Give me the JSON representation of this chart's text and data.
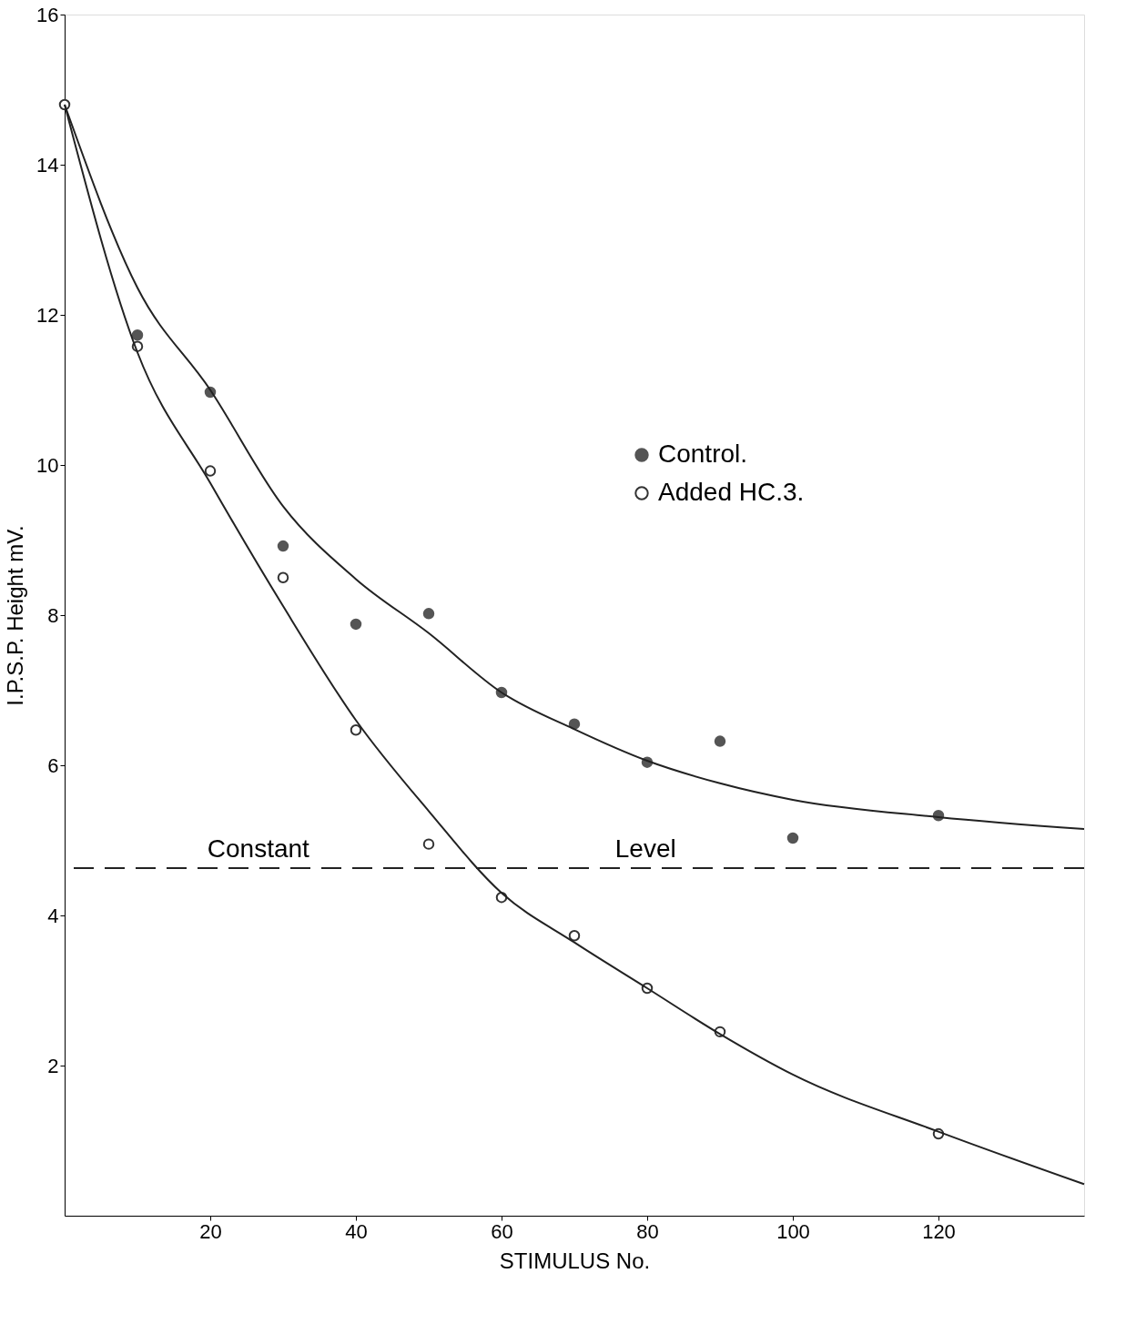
{
  "chart_data": {
    "type": "scatter",
    "xlabel": "STIMULUS No.",
    "ylabel": "I.P.S.P. Height mV.",
    "x": [
      0,
      10,
      20,
      30,
      40,
      50,
      60,
      70,
      80,
      90,
      100,
      120
    ],
    "series": [
      {
        "name": "Control.",
        "color": "#555555",
        "marker": "circle",
        "values": [
          null,
          11.73,
          10.97,
          8.92,
          7.88,
          8.02,
          6.97,
          6.55,
          6.04,
          6.32,
          5.03,
          5.33
        ]
      },
      {
        "name": "Added  HC.3.",
        "color": "#333333",
        "marker": "circle",
        "values": [
          14.8,
          11.58,
          9.92,
          8.5,
          6.47,
          4.95,
          4.24,
          3.73,
          3.03,
          2.45,
          null,
          1.09
        ]
      },
      {
        "type": "line",
        "marker": "none",
        "color": "#222222",
        "x": [
          0,
          10,
          20,
          30,
          40,
          50,
          60,
          70,
          80,
          90,
          100,
          120,
          140
        ],
        "values": [
          14.8,
          12.36,
          11.0,
          9.45,
          8.48,
          7.76,
          6.97,
          6.48,
          6.06,
          5.76,
          5.54,
          5.31,
          5.15
        ]
      },
      {
        "type": "line",
        "marker": "none",
        "color": "#222222",
        "x": [
          0,
          10,
          20,
          30,
          40,
          50,
          60,
          70,
          80,
          90,
          100,
          120,
          140
        ],
        "values": [
          14.8,
          11.5,
          9.76,
          8.12,
          6.6,
          5.39,
          4.3,
          3.64,
          3.03,
          2.42,
          1.88,
          1.12,
          0.42
        ]
      }
    ],
    "ref_lines": [
      {
        "axis": "y",
        "value": 4.63,
        "line_style": "dashed",
        "color": "#222222"
      }
    ],
    "annotations": [
      "Constant",
      "Level"
    ],
    "xlim": [
      0,
      140
    ],
    "ylim": [
      0,
      16
    ],
    "xticks": [
      20,
      40,
      60,
      80,
      100,
      120
    ],
    "yticks": [
      2,
      4,
      6,
      8,
      10,
      12,
      14,
      16
    ],
    "grid": false,
    "legend": "top right"
  }
}
